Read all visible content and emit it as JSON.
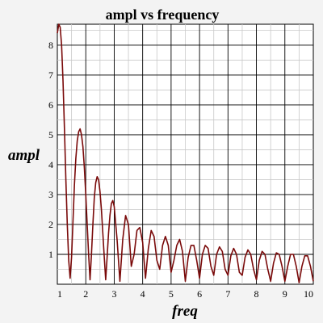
{
  "chart_data": {
    "type": "line",
    "title": "ampl vs frequency",
    "xlabel": "freq",
    "ylabel": "ampl",
    "xlim": [
      1,
      10
    ],
    "ylim": [
      0,
      8.7
    ],
    "x_ticks": [
      "1",
      "2",
      "3",
      "4",
      "5",
      "6",
      "7",
      "8",
      "9",
      "10"
    ],
    "y_ticks": [
      "1",
      "2",
      "3",
      "4",
      "5",
      "6",
      "7",
      "8"
    ],
    "grid": true,
    "line_color": "#7a0a0a",
    "series": [
      {
        "x": [
          1.0,
          1.05,
          1.1,
          1.15,
          1.2,
          1.25,
          1.3,
          1.35,
          1.4,
          1.45,
          1.5,
          1.55,
          1.6,
          1.65,
          1.7,
          1.75,
          1.8,
          1.85,
          1.9,
          1.95,
          2.0,
          2.05,
          2.1,
          2.15,
          2.2,
          2.25,
          2.3,
          2.35,
          2.4,
          2.45,
          2.5,
          2.55,
          2.6,
          2.65,
          2.7,
          2.75,
          2.8,
          2.85,
          2.9,
          2.95,
          3.0,
          3.1,
          3.2,
          3.3,
          3.4,
          3.5,
          3.6,
          3.7,
          3.8,
          3.9,
          4.0,
          4.1,
          4.2,
          4.3,
          4.4,
          4.5,
          4.6,
          4.7,
          4.8,
          4.9,
          5.0,
          5.1,
          5.2,
          5.3,
          5.4,
          5.5,
          5.6,
          5.7,
          5.8,
          5.9,
          6.0,
          6.1,
          6.2,
          6.3,
          6.4,
          6.5,
          6.6,
          6.7,
          6.8,
          6.9,
          7.0,
          7.1,
          7.2,
          7.3,
          7.4,
          7.5,
          7.6,
          7.7,
          7.8,
          7.9,
          8.0,
          8.1,
          8.2,
          8.3,
          8.4,
          8.5,
          8.6,
          8.7,
          8.8,
          8.9,
          9.0,
          9.1,
          9.2,
          9.3,
          9.4,
          9.5,
          9.6,
          9.7,
          9.8,
          9.9,
          10.0
        ],
        "y": [
          8.4,
          8.7,
          8.6,
          8.0,
          6.8,
          5.2,
          3.5,
          2.0,
          0.8,
          0.2,
          0.9,
          2.1,
          3.3,
          4.2,
          4.8,
          5.1,
          5.2,
          5.0,
          4.6,
          3.9,
          3.0,
          2.0,
          1.0,
          0.15,
          1.0,
          2.0,
          2.9,
          3.4,
          3.6,
          3.5,
          3.1,
          2.5,
          1.7,
          0.9,
          0.15,
          0.9,
          1.7,
          2.3,
          2.7,
          2.8,
          2.6,
          1.5,
          0.1,
          1.5,
          2.3,
          2.0,
          0.6,
          1.0,
          1.8,
          1.9,
          1.4,
          0.2,
          1.2,
          1.8,
          1.6,
          0.8,
          0.5,
          1.3,
          1.6,
          1.3,
          0.4,
          0.8,
          1.3,
          1.5,
          1.1,
          0.1,
          0.9,
          1.3,
          1.3,
          0.8,
          0.2,
          1.0,
          1.3,
          1.2,
          0.6,
          0.3,
          1.0,
          1.25,
          1.1,
          0.5,
          0.3,
          0.95,
          1.2,
          1.0,
          0.4,
          0.3,
          0.9,
          1.15,
          1.0,
          0.5,
          0.15,
          0.8,
          1.1,
          1.0,
          0.5,
          0.1,
          0.7,
          1.05,
          1.0,
          0.6,
          0.1,
          0.6,
          1.0,
          1.0,
          0.6,
          0.05,
          0.6,
          0.95,
          0.95,
          0.6,
          0.1
        ]
      }
    ]
  }
}
